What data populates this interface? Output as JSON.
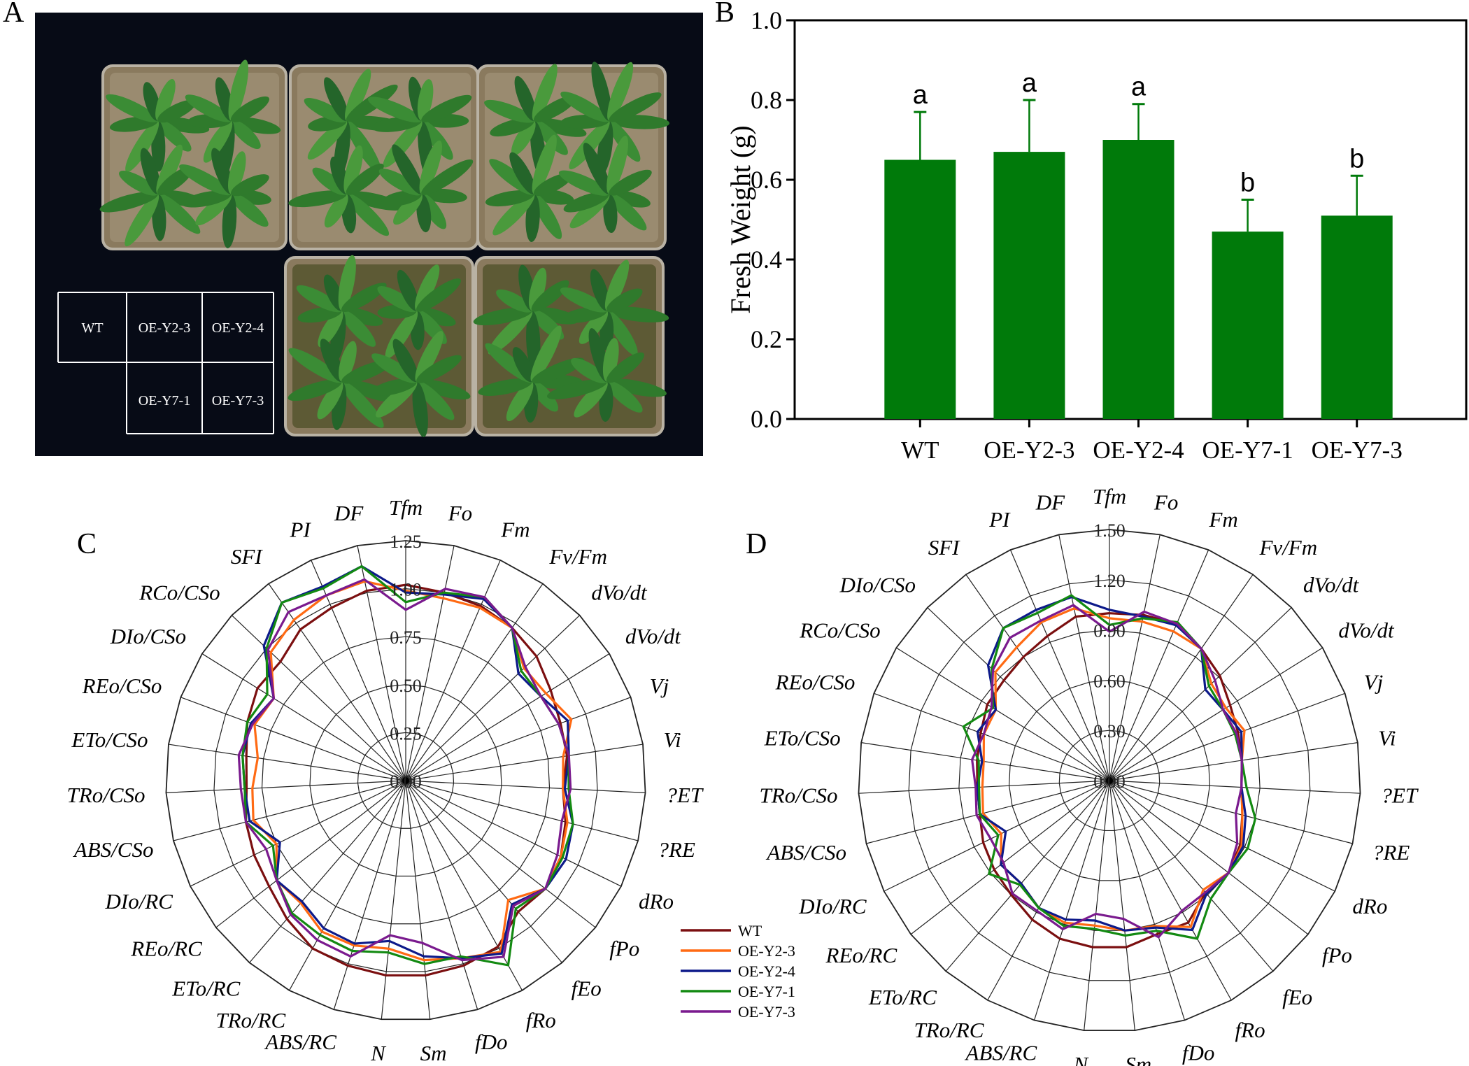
{
  "panels": {
    "A": {
      "letter": "A",
      "grid_labels": [
        "WT",
        "OE-Y2-3",
        "OE-Y2-4",
        "OE-Y7-1",
        "OE-Y7-3"
      ]
    },
    "B": {
      "letter": "B"
    },
    "C": {
      "letter": "C"
    },
    "D": {
      "letter": "D"
    }
  },
  "colors": {
    "bar": "#007a0a",
    "WT": "#7b0f10",
    "OE-Y2-3": "#ff6a13",
    "OE-Y2-4": "#0d1a8a",
    "OE-Y7-1": "#138a12",
    "OE-Y7-3": "#7a1a8e",
    "photo_background": "#070b16"
  },
  "legend": [
    "WT",
    "OE-Y2-3",
    "OE-Y2-4",
    "OE-Y7-1",
    "OE-Y7-3"
  ],
  "chart_data": [
    {
      "panel": "B",
      "type": "bar",
      "categories": [
        "WT",
        "OE-Y2-3",
        "OE-Y2-4",
        "OE-Y7-1",
        "OE-Y7-3"
      ],
      "values": [
        0.65,
        0.67,
        0.7,
        0.47,
        0.51
      ],
      "errors": [
        0.12,
        0.13,
        0.09,
        0.08,
        0.1
      ],
      "significance_letters": [
        "a",
        "a",
        "a",
        "b",
        "b"
      ],
      "ylabel": "Fresh Weight (g)",
      "ylim": [
        0,
        1.0
      ],
      "yticks": [
        "0.0",
        "0.2",
        "0.4",
        "0.6",
        "0.8",
        "1.0"
      ],
      "grid": false
    },
    {
      "panel": "C",
      "type": "radar",
      "max": 1.25,
      "ring_labels": [
        "0.00",
        "0.25",
        "0.50",
        "0.75",
        "1.00",
        "1.25"
      ],
      "axes": [
        "Tfm",
        "Fo",
        "Fm",
        "Fv/Fm",
        "dVo/dt",
        "dVo/dt",
        "Vj",
        "Vi",
        "?ET",
        "?RE",
        "dRo",
        "fPo",
        "fEo",
        "fRo",
        "fDo",
        "Sm",
        "N",
        "ABS/RC",
        "TRo/RC",
        "ETo/RC",
        "REo/RC",
        "DIo/RC",
        "ABS/CSo",
        "TRo/CSo",
        "ETo/CSo",
        "REo/CSo",
        "DIo/CSo",
        "RCo/CSo",
        "SFI",
        "PI",
        "DF"
      ],
      "series": [
        {
          "name": "WT",
          "values": [
            1.02,
            1.0,
            0.99,
            0.97,
            0.94,
            0.89,
            0.86,
            0.85,
            0.82,
            0.86,
            0.9,
            0.92,
            0.9,
            0.99,
            1.01,
            1.02,
            1.02,
            1.01,
            1.0,
            0.95,
            0.9,
            0.88,
            0.86,
            0.83,
            0.84,
            0.88,
            0.91,
            0.9,
            0.96,
            0.98,
            1.01
          ]
        },
        {
          "name": "OE-Y2-3",
          "values": [
            0.99,
            0.97,
            0.98,
            0.97,
            0.85,
            0.86,
            0.92,
            0.83,
            0.82,
            0.87,
            0.9,
            0.92,
            0.82,
            1.02,
            0.97,
            0.94,
            0.88,
            0.9,
            0.9,
            0.84,
            0.85,
            0.75,
            0.82,
            0.8,
            0.78,
            0.84,
            0.81,
            0.97,
            1.02,
            1.05,
            1.06
          ]
        },
        {
          "name": "OE-Y2-4",
          "values": [
            0.98,
            0.99,
            1.03,
            0.97,
            0.81,
            0.83,
            0.9,
            0.86,
            0.83,
            0.9,
            0.93,
            0.92,
            0.85,
            1.03,
            0.97,
            0.92,
            0.84,
            0.89,
            0.88,
            0.83,
            0.85,
            0.73,
            0.84,
            0.84,
            0.86,
            0.86,
            0.81,
            1.02,
            1.13,
            1.1,
            1.14
          ]
        },
        {
          "name": "OE-Y7-1",
          "values": [
            0.93,
            1.0,
            1.04,
            0.97,
            0.83,
            0.83,
            0.85,
            0.86,
            0.85,
            0.9,
            0.91,
            0.92,
            0.88,
            1.1,
            0.96,
            0.96,
            0.9,
            0.93,
            0.92,
            0.91,
            0.85,
            0.77,
            0.86,
            0.84,
            0.86,
            0.88,
            0.85,
            1.0,
            1.13,
            1.09,
            1.14
          ]
        },
        {
          "name": "OE-Y7-3",
          "values": [
            0.89,
            1.02,
            1.04,
            0.97,
            0.86,
            0.83,
            0.85,
            0.86,
            0.86,
            0.84,
            0.88,
            0.92,
            0.86,
            1.05,
            0.98,
            0.85,
            0.81,
            0.96,
            0.95,
            0.92,
            0.85,
            0.81,
            0.86,
            0.86,
            0.88,
            0.85,
            0.81,
            0.99,
            1.07,
            1.05,
            1.07
          ]
        }
      ]
    },
    {
      "panel": "D",
      "type": "radar",
      "max": 1.5,
      "ring_labels": [
        "0.00",
        "0.30",
        "0.60",
        "0.90",
        "1.20",
        "1.50"
      ],
      "axes": [
        "Tfm",
        "Fo",
        "Fm",
        "Fv/Fm",
        "dVo/dt",
        "dVo/dt",
        "Vj",
        "Vi",
        "?ET",
        "?RE",
        "dRo",
        "fPo",
        "fEo",
        "fRo",
        "fDo",
        "Sm",
        "N",
        "ABS/RC",
        "TRo/RC",
        "ETo/RC",
        "REo/RC",
        "DIo/RC",
        "ABS/CSo",
        "TRo/CSo",
        "ETo/CSo",
        "REo/CSo",
        "RCo/CSo",
        "DIo/CSo",
        "SFI",
        "PI",
        "DF"
      ],
      "series": [
        {
          "name": "WT",
          "values": [
            1.0,
            1.01,
            1.02,
            0.96,
            0.91,
            0.85,
            0.82,
            0.8,
            0.79,
            0.82,
            0.87,
            0.9,
            0.88,
            0.97,
            0.96,
            1.0,
            1.0,
            0.99,
            0.95,
            0.9,
            0.87,
            0.84,
            0.8,
            0.79,
            0.8,
            0.82,
            0.86,
            0.87,
            0.9,
            0.94,
            1.0
          ]
        },
        {
          "name": "OE-Y2-3",
          "values": [
            0.97,
            0.97,
            0.97,
            0.96,
            0.84,
            0.82,
            0.86,
            0.8,
            0.79,
            0.82,
            0.88,
            0.9,
            0.86,
            1.0,
            0.91,
            0.9,
            0.87,
            0.89,
            0.87,
            0.81,
            0.82,
            0.72,
            0.78,
            0.76,
            0.76,
            0.8,
            0.8,
            0.94,
            0.97,
            1.03,
            1.05
          ]
        },
        {
          "name": "OE-Y2-4",
          "values": [
            1.02,
            1.0,
            1.01,
            0.96,
            0.79,
            0.8,
            0.84,
            0.8,
            0.79,
            0.84,
            0.89,
            0.9,
            0.89,
            1.02,
            0.92,
            0.9,
            0.84,
            0.87,
            0.87,
            0.81,
            0.82,
            0.69,
            0.8,
            0.79,
            0.77,
            0.84,
            0.8,
            1.0,
            1.11,
            1.11,
            1.12
          ]
        },
        {
          "name": "OE-Y7-1",
          "values": [
            0.93,
            0.99,
            1.03,
            0.96,
            0.82,
            0.8,
            0.8,
            0.8,
            0.82,
            0.9,
            0.92,
            0.9,
            0.93,
            1.08,
            0.94,
            0.93,
            0.89,
            0.91,
            0.87,
            0.82,
            0.91,
            0.74,
            0.8,
            0.78,
            0.79,
            0.93,
            0.82,
            0.97,
            1.11,
            1.09,
            1.13
          ]
        },
        {
          "name": "OE-Y7-3",
          "values": [
            0.89,
            1.03,
            1.02,
            0.96,
            0.87,
            0.8,
            0.81,
            0.8,
            0.79,
            0.78,
            0.85,
            0.9,
            0.88,
            0.89,
            0.98,
            0.83,
            0.8,
            0.93,
            0.89,
            0.89,
            0.8,
            0.79,
            0.82,
            0.8,
            0.83,
            0.8,
            0.83,
            0.96,
            1.04,
            1.04,
            1.07
          ]
        }
      ]
    }
  ]
}
